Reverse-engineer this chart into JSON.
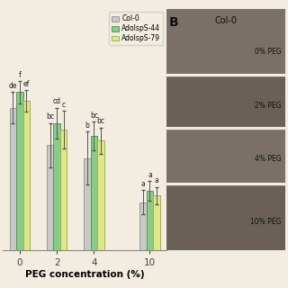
{
  "categories": [
    "0",
    "2",
    "4",
    "10"
  ],
  "series": {
    "Col-0": {
      "values": [
        6.5,
        4.8,
        4.2,
        2.2
      ],
      "errors": [
        0.7,
        1.0,
        1.2,
        0.55
      ],
      "color": "#c8c8c8",
      "edge_color": "#999999",
      "labels": [
        "de",
        "bc",
        "b",
        "a"
      ]
    },
    "AdolspS-44": {
      "values": [
        7.2,
        5.8,
        5.2,
        2.7
      ],
      "errors": [
        0.5,
        0.7,
        0.65,
        0.45
      ],
      "color": "#88cc88",
      "edge_color": "#559955",
      "labels": [
        "f",
        "cd",
        "bc",
        "a"
      ]
    },
    "AdolspS-79": {
      "values": [
        6.8,
        5.5,
        5.0,
        2.5
      ],
      "errors": [
        0.5,
        0.85,
        0.6,
        0.4
      ],
      "color": "#dde888",
      "edge_color": "#aaaa55",
      "labels": [
        "ef",
        "c",
        "bc",
        "a"
      ]
    }
  },
  "xlabel": "PEG concentration (%)",
  "ylim": [
    0,
    11.0
  ],
  "bar_width": 0.18,
  "group_centers": [
    0,
    1,
    2,
    3.5
  ],
  "background_color": "#f2ede0",
  "legend_entries": [
    "Col-0",
    "AdolspS-44",
    "AdolspS-79"
  ],
  "photo_bg": "#b0a898",
  "photo_label_color": "#111111",
  "photo_labels": [
    "0% PEG",
    "2% PEG",
    "4% PEG",
    "10% PEG"
  ],
  "photo_title": "Col-0",
  "panel_b_label": "B"
}
